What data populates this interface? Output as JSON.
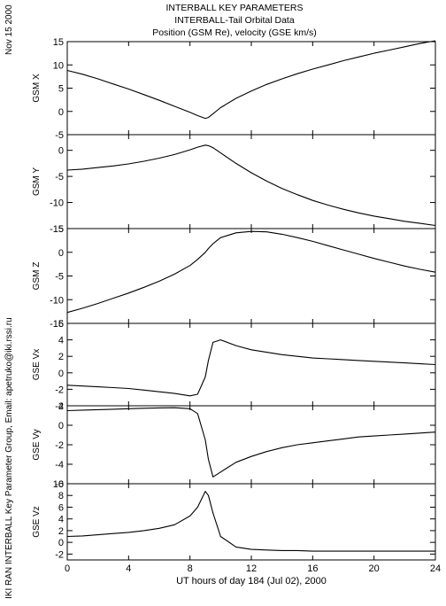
{
  "header": {
    "title_lines": [
      "INTERBALL KEY PARAMETERS",
      "INTERBALL-Tail Orbital Data",
      "Position (GSM Re), velocity (GSE km/s)"
    ],
    "date_stamp": "Nov 15 2000",
    "credit": "IKI RAN INTERBALL Key Parameter Group, Email: apetruko@iki.rssi.ru"
  },
  "chart_data": {
    "type": "line",
    "xlabel": "UT hours of day 184 (Jul 02), 2000",
    "xlim": [
      0,
      24
    ],
    "xticks": [
      0,
      4,
      8,
      12,
      16,
      20,
      24
    ],
    "x": [
      0,
      1,
      2,
      3,
      4,
      5,
      6,
      7,
      8,
      8.5,
      9,
      9.2,
      9.5,
      10,
      11,
      12,
      13,
      14,
      15,
      16,
      17,
      18,
      19,
      20,
      21,
      22,
      23,
      24
    ],
    "panels": [
      {
        "ylabel": "GSM X",
        "ylim": [
          -5,
          15
        ],
        "yticks": [
          -5,
          0,
          5,
          10,
          15
        ],
        "values": [
          8.8,
          8.0,
          7.0,
          5.9,
          4.8,
          3.6,
          2.4,
          1.1,
          -0.2,
          -0.9,
          -1.5,
          -1.3,
          -0.5,
          0.8,
          2.8,
          4.4,
          5.8,
          7.0,
          8.1,
          9.1,
          10.0,
          10.9,
          11.7,
          12.5,
          13.2,
          13.9,
          14.6,
          15.2
        ]
      },
      {
        "ylabel": "GSM Y",
        "ylim": [
          -15,
          3
        ],
        "yticks": [
          -15,
          -10,
          -5,
          0
        ],
        "values": [
          -3.8,
          -3.6,
          -3.3,
          -3.0,
          -2.6,
          -2.1,
          -1.5,
          -0.8,
          0.1,
          0.6,
          1.0,
          0.9,
          0.5,
          -0.5,
          -2.5,
          -4.3,
          -5.9,
          -7.3,
          -8.5,
          -9.6,
          -10.5,
          -11.3,
          -12.0,
          -12.6,
          -13.1,
          -13.6,
          -14.0,
          -14.4
        ]
      },
      {
        "ylabel": "GSM Z",
        "ylim": [
          -15,
          5
        ],
        "yticks": [
          -15,
          -10,
          -5,
          0,
          5
        ],
        "values": [
          -12.7,
          -11.8,
          -10.8,
          -9.7,
          -8.6,
          -7.4,
          -6.1,
          -4.6,
          -2.8,
          -1.5,
          0.0,
          0.8,
          1.8,
          3.1,
          4.1,
          4.4,
          4.3,
          3.8,
          3.1,
          2.3,
          1.4,
          0.5,
          -0.4,
          -1.3,
          -2.1,
          -2.9,
          -3.6,
          -4.2
        ]
      },
      {
        "ylabel": "GSE Vx",
        "ylim": [
          -4,
          6
        ],
        "yticks": [
          -4,
          -2,
          0,
          2,
          4,
          6
        ],
        "values": [
          -1.5,
          -1.6,
          -1.7,
          -1.8,
          -1.9,
          -2.1,
          -2.3,
          -2.5,
          -2.8,
          -2.6,
          -0.5,
          1.5,
          3.7,
          4.0,
          3.3,
          2.8,
          2.5,
          2.2,
          2.0,
          1.8,
          1.7,
          1.6,
          1.5,
          1.4,
          1.3,
          1.2,
          1.1,
          1.0
        ]
      },
      {
        "ylabel": "GSE Vy",
        "ylim": [
          -6,
          2
        ],
        "yticks": [
          -6,
          -4,
          -2,
          0,
          2
        ],
        "values": [
          1.5,
          1.55,
          1.6,
          1.65,
          1.7,
          1.75,
          1.78,
          1.8,
          1.7,
          1.2,
          -1.5,
          -3.5,
          -5.3,
          -4.8,
          -3.8,
          -3.2,
          -2.7,
          -2.3,
          -2.0,
          -1.8,
          -1.6,
          -1.4,
          -1.2,
          -1.1,
          -1.0,
          -0.9,
          -0.8,
          -0.7
        ]
      },
      {
        "ylabel": "GSE Vz",
        "ylim": [
          -3,
          10
        ],
        "yticks": [
          -2,
          0,
          2,
          4,
          6,
          8,
          10
        ],
        "values": [
          1.0,
          1.1,
          1.3,
          1.5,
          1.7,
          2.0,
          2.4,
          3.0,
          4.5,
          6.0,
          8.7,
          8.0,
          5.0,
          1.0,
          -0.8,
          -1.2,
          -1.3,
          -1.4,
          -1.4,
          -1.5,
          -1.5,
          -1.5,
          -1.5,
          -1.5,
          -1.5,
          -1.5,
          -1.5,
          -1.5
        ]
      }
    ]
  }
}
